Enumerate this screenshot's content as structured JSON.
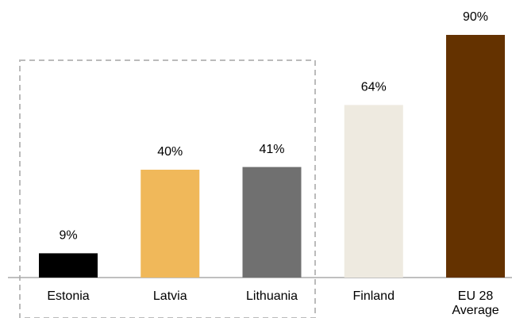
{
  "chart_data": {
    "type": "bar",
    "categories": [
      "Estonia",
      "Latvia",
      "Lithuania",
      "Finland",
      "EU 28 Average"
    ],
    "values": [
      9,
      40,
      41,
      64,
      90
    ],
    "value_labels": [
      "9%",
      "40%",
      "41%",
      "64%",
      "90%"
    ],
    "colors": [
      "#000000",
      "#f0b85a",
      "#707070",
      "#eeeae0",
      "#643200"
    ]
  }
}
